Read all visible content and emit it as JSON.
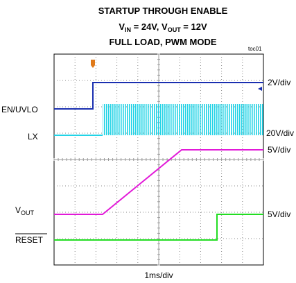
{
  "title": {
    "line1": "STARTUP THROUGH ENABLE",
    "line2": [
      "V",
      "IN",
      " = 24V, ",
      "V",
      "OUT",
      " = 12V"
    ],
    "line3": "FULL LOAD, PWM MODE"
  },
  "figure_id": "toc01",
  "channels": [
    {
      "label": "EN/UVLO",
      "scale": "2V/div"
    },
    {
      "label": "LX",
      "scale": "20V/div"
    },
    {
      "label": [
        "V",
        "OUT"
      ],
      "scale": "5V/div"
    },
    {
      "label": "RESET",
      "scale": "5V/div"
    }
  ],
  "time_scale": "1ms/div"
}
